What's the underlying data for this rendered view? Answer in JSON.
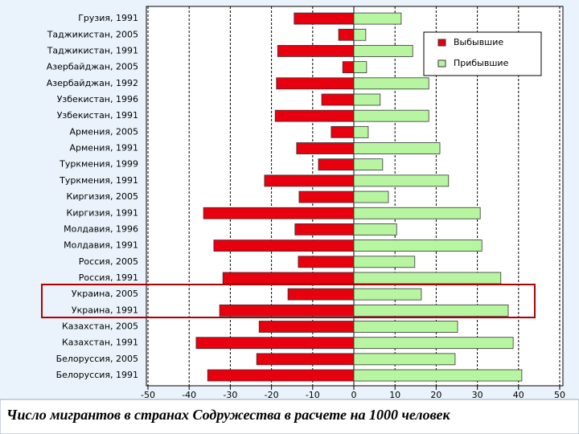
{
  "chart_data": {
    "type": "hbar",
    "title": "Число мигрантов в странах Содружества в расчете на 1000 человек",
    "categories": [
      "Грузия, 1991",
      "Таджикистан, 2005",
      "Таджикистан, 1991",
      "Азербайджан, 2005",
      "Азербайджан, 1992",
      "Узбекистан, 1996",
      "Узбекистан, 1991",
      "Армения, 2005",
      "Армения, 1991",
      "Туркмения, 1999",
      "Туркмения, 1991",
      "Киргизия, 2005",
      "Киргизия, 1991",
      "Молдавия, 1996",
      "Молдавия, 1991",
      "Россия, 2005",
      "Россия, 1991",
      "Украина, 2005",
      "Украина, 1991",
      "Казахстан, 2005",
      "Казахстан, 1991",
      "Белоруссия, 2005",
      "Белоруссия, 1991"
    ],
    "series": [
      {
        "name": "Выбывшие",
        "color": "#e8000f",
        "values": [
          -14.5,
          -3.7,
          -18.5,
          -2.7,
          -18.8,
          -7.8,
          -19.1,
          -5.5,
          -13.9,
          -8.6,
          -21.7,
          -13.3,
          -36.5,
          -14.3,
          -34.0,
          -13.5,
          -31.8,
          -16.0,
          -32.6,
          -23.0,
          -38.3,
          -23.6,
          -35.5
        ]
      },
      {
        "name": "Прибывшие",
        "color": "#b8f5a0",
        "values": [
          11.5,
          2.9,
          14.3,
          3.1,
          18.2,
          6.4,
          18.2,
          3.5,
          20.9,
          7.0,
          23.0,
          8.4,
          30.7,
          10.4,
          31.1,
          14.8,
          35.7,
          16.4,
          37.5,
          25.2,
          38.7,
          24.6,
          40.8
        ]
      }
    ],
    "xlim": [
      -50,
      50
    ],
    "xticks": [
      -50,
      -40,
      -30,
      -20,
      -10,
      0,
      10,
      20,
      30,
      40,
      50
    ],
    "grid": true
  }
}
